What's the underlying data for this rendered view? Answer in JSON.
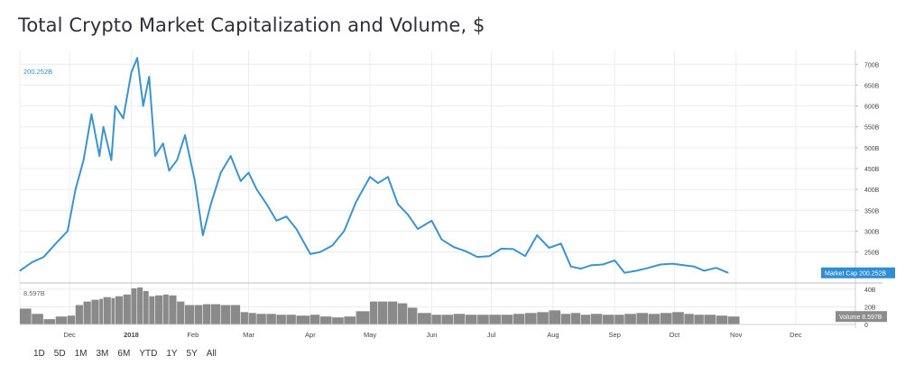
{
  "title": "Total Crypto Market Capitalization and Volume, $",
  "range_buttons": [
    "1D",
    "5D",
    "1M",
    "3M",
    "6M",
    "YTD",
    "1Y",
    "5Y",
    "All"
  ],
  "colors": {
    "line": "#3b94d1",
    "volume": "#8a8a8a",
    "grid": "#ececec",
    "label_market": "#2f8dd6",
    "label_volume": "#8c8c8c"
  },
  "chart_data": [
    {
      "type": "line",
      "series_name": "Market Cap",
      "current_label": "200.252B",
      "last_value_label": "Market Cap  200.252B",
      "y_ticks": [
        250,
        300,
        350,
        400,
        450,
        500,
        550,
        600,
        650,
        700
      ],
      "y_tick_labels": [
        "250B",
        "300B",
        "350B",
        "400B",
        "450B",
        "500B",
        "550B",
        "600B",
        "650B",
        "700B"
      ],
      "ylim": [
        180,
        720
      ],
      "x_tick_labels": [
        "Dec",
        "2018",
        "Feb",
        "Mar",
        "Apr",
        "May",
        "Jun",
        "Jul",
        "Aug",
        "Sep",
        "Oct",
        "Nov",
        "Dec"
      ],
      "x_tick_dates": [
        "2017-12-01",
        "2018-01-01",
        "2018-02-01",
        "2018-03-01",
        "2018-04-01",
        "2018-05-01",
        "2018-06-01",
        "2018-07-01",
        "2018-08-01",
        "2018-09-01",
        "2018-10-01",
        "2018-11-01",
        "2018-12-01"
      ],
      "xlim": [
        "2017-11-06",
        "2018-12-31"
      ],
      "x": [
        "2017-11-06",
        "2017-11-12",
        "2017-11-18",
        "2017-11-24",
        "2017-11-30",
        "2017-12-04",
        "2017-12-08",
        "2017-12-12",
        "2017-12-16",
        "2017-12-18",
        "2017-12-22",
        "2017-12-24",
        "2017-12-28",
        "2018-01-01",
        "2018-01-04",
        "2018-01-07",
        "2018-01-10",
        "2018-01-13",
        "2018-01-17",
        "2018-01-20",
        "2018-01-24",
        "2018-01-28",
        "2018-02-02",
        "2018-02-06",
        "2018-02-10",
        "2018-02-15",
        "2018-02-20",
        "2018-02-25",
        "2018-03-01",
        "2018-03-05",
        "2018-03-10",
        "2018-03-15",
        "2018-03-20",
        "2018-03-25",
        "2018-04-01",
        "2018-04-06",
        "2018-04-12",
        "2018-04-18",
        "2018-04-24",
        "2018-05-01",
        "2018-05-05",
        "2018-05-10",
        "2018-05-15",
        "2018-05-20",
        "2018-05-25",
        "2018-06-01",
        "2018-06-06",
        "2018-06-12",
        "2018-06-18",
        "2018-06-24",
        "2018-06-30",
        "2018-07-06",
        "2018-07-12",
        "2018-07-18",
        "2018-07-24",
        "2018-07-30",
        "2018-08-05",
        "2018-08-10",
        "2018-08-15",
        "2018-08-20",
        "2018-08-26",
        "2018-09-01",
        "2018-09-06",
        "2018-09-12",
        "2018-09-18",
        "2018-09-24",
        "2018-09-30",
        "2018-10-06",
        "2018-10-11",
        "2018-10-16",
        "2018-10-22",
        "2018-10-28"
      ],
      "values": [
        205,
        225,
        238,
        270,
        300,
        400,
        470,
        580,
        480,
        550,
        470,
        600,
        570,
        680,
        715,
        600,
        670,
        480,
        510,
        445,
        470,
        530,
        420,
        290,
        365,
        440,
        480,
        420,
        440,
        400,
        365,
        325,
        335,
        305,
        245,
        250,
        265,
        300,
        370,
        430,
        415,
        430,
        365,
        340,
        305,
        325,
        280,
        262,
        252,
        238,
        240,
        258,
        257,
        240,
        290,
        260,
        270,
        215,
        210,
        218,
        220,
        230,
        200,
        205,
        212,
        220,
        222,
        218,
        215,
        205,
        212,
        200
      ]
    },
    {
      "type": "bar",
      "series_name": "Volume",
      "current_label": "8.597B",
      "last_value_label": "Volume  8.597B",
      "y_ticks": [
        0,
        20,
        40
      ],
      "y_tick_labels": [
        "0",
        "20B",
        "40B"
      ],
      "ylim": [
        0,
        43
      ],
      "x": [
        "2017-11-06",
        "2017-11-12",
        "2017-11-18",
        "2017-11-24",
        "2017-11-30",
        "2017-12-04",
        "2017-12-08",
        "2017-12-12",
        "2017-12-16",
        "2017-12-18",
        "2017-12-22",
        "2017-12-24",
        "2017-12-28",
        "2018-01-01",
        "2018-01-04",
        "2018-01-07",
        "2018-01-10",
        "2018-01-13",
        "2018-01-17",
        "2018-01-20",
        "2018-01-24",
        "2018-01-28",
        "2018-02-02",
        "2018-02-06",
        "2018-02-10",
        "2018-02-15",
        "2018-02-20",
        "2018-02-25",
        "2018-03-01",
        "2018-03-05",
        "2018-03-10",
        "2018-03-15",
        "2018-03-20",
        "2018-03-25",
        "2018-04-01",
        "2018-04-06",
        "2018-04-12",
        "2018-04-18",
        "2018-04-24",
        "2018-05-01",
        "2018-05-05",
        "2018-05-10",
        "2018-05-15",
        "2018-05-20",
        "2018-05-25",
        "2018-06-01",
        "2018-06-06",
        "2018-06-12",
        "2018-06-18",
        "2018-06-24",
        "2018-06-30",
        "2018-07-06",
        "2018-07-12",
        "2018-07-18",
        "2018-07-24",
        "2018-07-30",
        "2018-08-05",
        "2018-08-10",
        "2018-08-15",
        "2018-08-20",
        "2018-08-26",
        "2018-09-01",
        "2018-09-06",
        "2018-09-12",
        "2018-09-18",
        "2018-09-24",
        "2018-09-30",
        "2018-10-06",
        "2018-10-11",
        "2018-10-16",
        "2018-10-22",
        "2018-10-28"
      ],
      "values": [
        18,
        12,
        6,
        9,
        10,
        22,
        26,
        28,
        29,
        31,
        30,
        32,
        34,
        41,
        42,
        38,
        32,
        33,
        34,
        33,
        26,
        22,
        22,
        23,
        23,
        22,
        22,
        14,
        13,
        12,
        12,
        11,
        11,
        10,
        11,
        9,
        8,
        9,
        15,
        26,
        26,
        26,
        24,
        19,
        13,
        11,
        11,
        12,
        11,
        11,
        11,
        11,
        12,
        13,
        14,
        16,
        12,
        13,
        11,
        12,
        11,
        11,
        12,
        13,
        12,
        13,
        14,
        12,
        11,
        11,
        10,
        9
      ]
    }
  ]
}
